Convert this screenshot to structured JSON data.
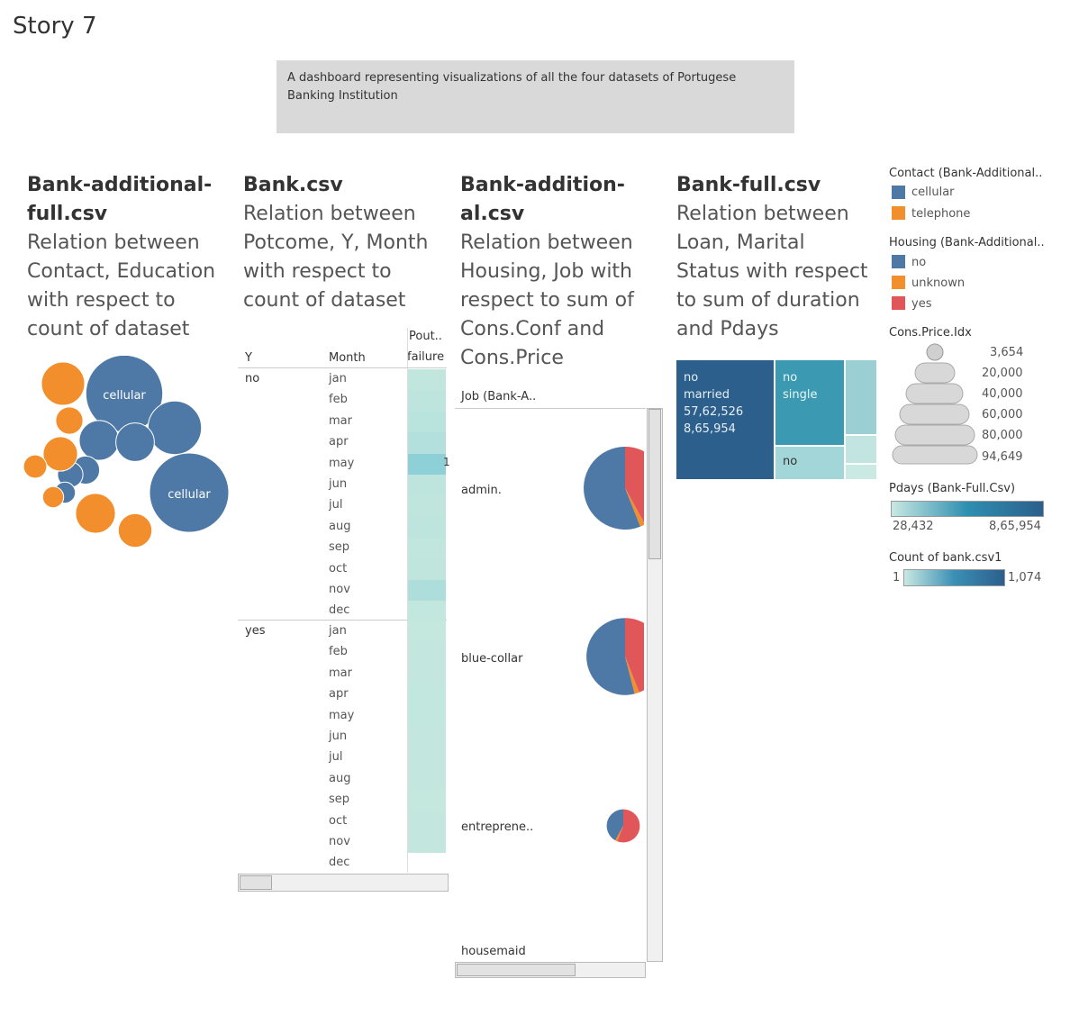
{
  "story": {
    "title": "Story 7"
  },
  "description": "A dashboard representing visualizations of all the four datasets of Portugese Banking Institution",
  "sheets": [
    {
      "file_a": "Bank-additional-",
      "file_b": "full.csv",
      "subtitle": [
        "Relation between",
        "Contact, Education",
        "with respect to",
        "count of dataset"
      ]
    },
    {
      "file_a": "Bank.csv",
      "file_b": "",
      "subtitle": [
        "Relation between",
        "Potcome, Y, Month",
        "with respect to",
        "count of dataset"
      ]
    },
    {
      "file_a": "Bank-addition-",
      "file_b": "al.csv",
      "subtitle": [
        "Relation between",
        "Housing, Job with",
        "respect to sum of",
        "Cons.Conf and",
        "Cons.Price"
      ]
    },
    {
      "file_a": "Bank-full.csv",
      "file_b": "",
      "subtitle": [
        "Relation between",
        "Loan, Marital",
        "Status with respect",
        "to sum of duration",
        "and Pdays"
      ]
    }
  ],
  "colors": {
    "blue": "#4e79a7",
    "orange": "#f28e2b",
    "red": "#e15759",
    "teal_light": "#c0e6dc",
    "navy": "#2b5b8a",
    "teal": "#3b9ab2"
  },
  "chart_data": [
    {
      "type": "bubble",
      "labels": {
        "cellular_1": "cellular",
        "cellular_2": "cellular"
      },
      "series": [
        {
          "name": "cellular",
          "color": "#4e79a7",
          "values": [
            1200,
            580,
            320,
            300,
            160,
            130,
            90,
            1274
          ]
        },
        {
          "name": "telephone",
          "color": "#f28e2b",
          "values": [
            380,
            150,
            240,
            110,
            90,
            320,
            230
          ]
        }
      ]
    },
    {
      "type": "heatmap",
      "headers": {
        "y": "Y",
        "month": "Month",
        "poutcome_1": "Pout..",
        "poutcome_2": "failure"
      },
      "groups": [
        {
          "y": "no",
          "months": [
            "jan",
            "feb",
            "mar",
            "apr",
            "may",
            "jun",
            "jul",
            "aug",
            "sep",
            "oct",
            "nov",
            "dec"
          ],
          "counts": [
            12,
            20,
            28,
            42,
            130,
            18,
            14,
            16,
            10,
            14,
            55,
            6
          ]
        },
        {
          "y": "yes",
          "months": [
            "jan",
            "feb",
            "mar",
            "apr",
            "may",
            "jun",
            "jul",
            "aug",
            "sep",
            "oct",
            "nov",
            "dec"
          ],
          "counts": [
            3,
            4,
            5,
            6,
            8,
            5,
            4,
            5,
            3,
            4,
            5,
            1
          ]
        }
      ],
      "cell_label": "1"
    },
    {
      "type": "pie",
      "header": "Job (Bank-A..",
      "rows": [
        {
          "job": "admin.",
          "size": 1,
          "slices": [
            {
              "name": "no",
              "share": 0.56
            },
            {
              "name": "unknown",
              "share": 0.02
            },
            {
              "name": "yes",
              "share": 0.42
            }
          ]
        },
        {
          "job": "blue-collar",
          "size": 0.93,
          "slices": [
            {
              "name": "no",
              "share": 0.54
            },
            {
              "name": "unknown",
              "share": 0.02
            },
            {
              "name": "yes",
              "share": 0.44
            }
          ]
        },
        {
          "job": "entrepreneur",
          "label": "entreprene..",
          "size": 0.4,
          "slices": [
            {
              "name": "no",
              "share": 0.42
            },
            {
              "name": "unknown",
              "share": 0.02
            },
            {
              "name": "yes",
              "share": 0.56
            }
          ]
        },
        {
          "job": "housemaid",
          "label": "housemaid",
          "size": 0,
          "slices": []
        }
      ]
    },
    {
      "type": "treemap",
      "cells": [
        {
          "loan": "no",
          "marital": "married",
          "duration": "57,62,526",
          "pdays": "8,65,954"
        },
        {
          "loan": "no",
          "marital": "single"
        },
        {
          "loan": "no"
        }
      ]
    }
  ],
  "legends": {
    "contact": {
      "title": "Contact (Bank-Additional..",
      "items": [
        {
          "label": "cellular",
          "color": "#4e79a7"
        },
        {
          "label": "telephone",
          "color": "#f28e2b"
        }
      ]
    },
    "housing": {
      "title": "Housing (Bank-Additional..",
      "items": [
        {
          "label": "no",
          "color": "#4e79a7"
        },
        {
          "label": "unknown",
          "color": "#f28e2b"
        },
        {
          "label": "yes",
          "color": "#e15759"
        }
      ]
    },
    "cons_price": {
      "title": "Cons.Price.Idx",
      "items": [
        "3,654",
        "20,000",
        "40,000",
        "60,000",
        "80,000",
        "94,649"
      ]
    },
    "pdays": {
      "title": "Pdays (Bank-Full.Csv)",
      "min": "28,432",
      "max": "8,65,954"
    },
    "count": {
      "title": "Count of bank.csv1",
      "min": "1",
      "max": "1,074"
    }
  }
}
